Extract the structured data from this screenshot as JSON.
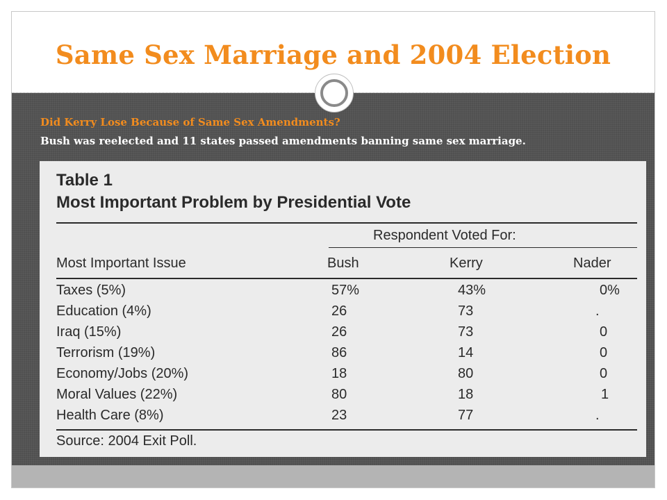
{
  "slide": {
    "title": "Same Sex Marriage and 2004 Election",
    "subtitle": "Did Kerry Lose Because of Same Sex Amendments?",
    "body": "Bush was reelected and 11 states passed amendments banning same sex marriage."
  },
  "table": {
    "title_line1": "Table 1",
    "title_line2": "Most Important Problem by Presidential Vote",
    "group_header": "Respondent Voted For:",
    "columns": [
      "Most Important Issue",
      "Bush",
      "Kerry",
      "Nader"
    ],
    "rows": [
      [
        "Taxes (5%)",
        "57%",
        "43%",
        "0%"
      ],
      [
        "Education (4%)",
        "26",
        "73",
        "."
      ],
      [
        "Iraq (15%)",
        "26",
        "73",
        "0"
      ],
      [
        "Terrorism (19%)",
        "86",
        "14",
        "0"
      ],
      [
        "Economy/Jobs (20%)",
        "18",
        "80",
        "0"
      ],
      [
        "Moral Values (22%)",
        "80",
        "18",
        "1"
      ],
      [
        "Health Care (8%)",
        "23",
        "77",
        "."
      ]
    ],
    "source": "Source: 2004 Exit Poll."
  },
  "colors": {
    "title_orange": "#f28c1e",
    "content_background": "#505050",
    "footer_gray": "#b4b4b4"
  }
}
